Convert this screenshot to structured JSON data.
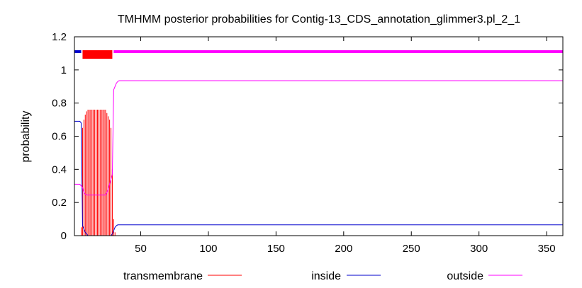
{
  "chart_data": {
    "type": "line",
    "title": "TMHMM posterior probabilities for Contig-13_CDS_annotation_glimmer3.pl_2_1",
    "xlabel": "",
    "ylabel": "probability",
    "xlim": [
      1,
      362
    ],
    "ylim": [
      0,
      1.2
    ],
    "x_ticks": [
      50,
      100,
      150,
      200,
      250,
      300,
      350
    ],
    "y_ticks": [
      0,
      0.2,
      0.4,
      0.6,
      0.8,
      1,
      1.2
    ],
    "y_tick_labels": [
      "0",
      "0.2",
      "0.4",
      "0.6",
      "0.8",
      "1",
      "1.2"
    ],
    "grid": false,
    "legend_position": "bottom",
    "series": [
      {
        "name": "transmembrane",
        "color": "#ff0000",
        "style": "impulses",
        "points": [
          [
            6,
            0.05
          ],
          [
            7,
            0.65
          ],
          [
            8,
            0.7
          ],
          [
            9,
            0.73
          ],
          [
            10,
            0.75
          ],
          [
            11,
            0.76
          ],
          [
            12,
            0.76
          ],
          [
            13,
            0.76
          ],
          [
            14,
            0.76
          ],
          [
            15,
            0.76
          ],
          [
            16,
            0.76
          ],
          [
            17,
            0.76
          ],
          [
            18,
            0.76
          ],
          [
            19,
            0.76
          ],
          [
            20,
            0.76
          ],
          [
            21,
            0.76
          ],
          [
            22,
            0.76
          ],
          [
            23,
            0.76
          ],
          [
            24,
            0.76
          ],
          [
            25,
            0.74
          ],
          [
            26,
            0.72
          ],
          [
            27,
            0.7
          ],
          [
            28,
            0.65
          ],
          [
            29,
            0.4
          ],
          [
            30,
            0.1
          ],
          [
            31,
            0.02
          ],
          [
            32,
            0.0
          ]
        ]
      },
      {
        "name": "inside",
        "color": "#0000cd",
        "style": "line",
        "points": [
          [
            1,
            0.69
          ],
          [
            5,
            0.69
          ],
          [
            6,
            0.68
          ],
          [
            7,
            0.06
          ],
          [
            8,
            0.04
          ],
          [
            9,
            0.02
          ],
          [
            10,
            0.01
          ],
          [
            11,
            0.0
          ],
          [
            28,
            0.0
          ],
          [
            29,
            0.01
          ],
          [
            30,
            0.03
          ],
          [
            31,
            0.05
          ],
          [
            32,
            0.06
          ],
          [
            33,
            0.065
          ],
          [
            362,
            0.065
          ]
        ]
      },
      {
        "name": "outside",
        "color": "#ff00ff",
        "style": "line",
        "points": [
          [
            1,
            0.31
          ],
          [
            5,
            0.31
          ],
          [
            6,
            0.3
          ],
          [
            7,
            0.29
          ],
          [
            8,
            0.26
          ],
          [
            9,
            0.25
          ],
          [
            10,
            0.245
          ],
          [
            24,
            0.245
          ],
          [
            25,
            0.26
          ],
          [
            26,
            0.28
          ],
          [
            27,
            0.31
          ],
          [
            28,
            0.34
          ],
          [
            29,
            0.37
          ],
          [
            30,
            0.88
          ],
          [
            31,
            0.9
          ],
          [
            32,
            0.92
          ],
          [
            33,
            0.93
          ],
          [
            34,
            0.935
          ],
          [
            362,
            0.935
          ]
        ]
      }
    ],
    "topology_bars": [
      {
        "region": "inside",
        "start": 1,
        "end": 6,
        "color": "#0000cd"
      },
      {
        "region": "transmembrane",
        "start": 7,
        "end": 29,
        "color": "#ff0000"
      },
      {
        "region": "outside",
        "start": 30,
        "end": 362,
        "color": "#ff00ff"
      }
    ]
  }
}
